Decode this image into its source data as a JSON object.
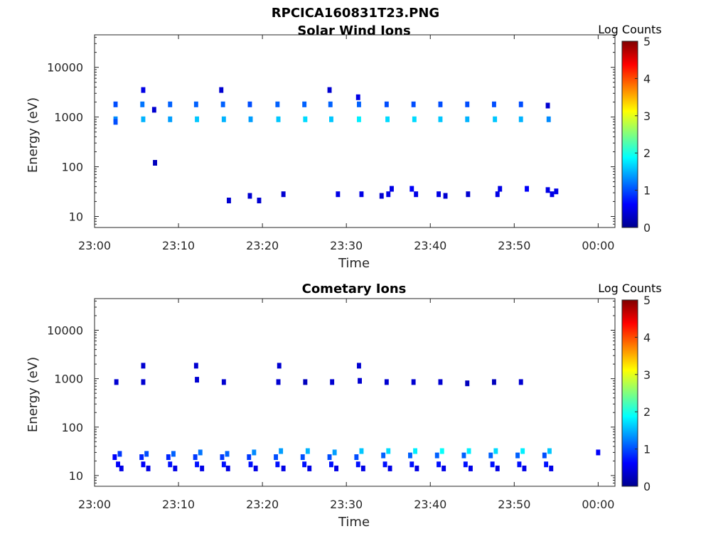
{
  "figure": {
    "title": "RPCICA160831T23.PNG"
  },
  "chart_data": [
    {
      "type": "heatmap",
      "title": "Solar Wind Ions",
      "xlabel": "Time",
      "ylabel": "Energy (eV)",
      "x_range": [
        "23:00",
        "00:02"
      ],
      "xticks": [
        "23:00",
        "23:10",
        "23:20",
        "23:30",
        "23:40",
        "23:50",
        "00:00"
      ],
      "y_scale": "log",
      "ylim": [
        6,
        45000
      ],
      "yticks": [
        10,
        100,
        1000,
        10000
      ],
      "yticklabels": [
        "10",
        "100",
        "1000",
        "10000"
      ],
      "colorbar": {
        "label": "Log Counts",
        "range": [
          0,
          5
        ],
        "ticks": [
          "0",
          "1",
          "2",
          "3",
          "4",
          "5"
        ],
        "colormap": "jet"
      },
      "grid": false,
      "cells": [
        [
          2.5,
          1800,
          1.0
        ],
        [
          2.5,
          900,
          1.3
        ],
        [
          2.5,
          800,
          1.0
        ],
        [
          5.7,
          1800,
          1.2
        ],
        [
          5.8,
          900,
          1.5
        ],
        [
          5.8,
          3500,
          0.5
        ],
        [
          7.1,
          1400,
          0.4
        ],
        [
          7.2,
          120,
          0.3
        ],
        [
          9.0,
          1800,
          1.1
        ],
        [
          9.0,
          900,
          1.4
        ],
        [
          12.1,
          1800,
          1.1
        ],
        [
          12.2,
          900,
          1.6
        ],
        [
          15.3,
          1800,
          1.1
        ],
        [
          15.4,
          900,
          1.5
        ],
        [
          15.1,
          3500,
          0.4
        ],
        [
          18.5,
          1800,
          1.0
        ],
        [
          18.6,
          900,
          1.4
        ],
        [
          21.8,
          1800,
          1.1
        ],
        [
          21.9,
          900,
          1.6
        ],
        [
          25.0,
          1800,
          1.1
        ],
        [
          25.1,
          900,
          1.7
        ],
        [
          28.1,
          1800,
          1.1
        ],
        [
          28.2,
          900,
          1.6
        ],
        [
          28.0,
          3500,
          0.4
        ],
        [
          31.5,
          1800,
          1.1
        ],
        [
          31.5,
          900,
          1.8
        ],
        [
          31.4,
          2500,
          0.5
        ],
        [
          34.8,
          1800,
          1.0
        ],
        [
          34.9,
          900,
          1.7
        ],
        [
          38.0,
          1800,
          1.0
        ],
        [
          38.1,
          900,
          1.7
        ],
        [
          41.2,
          1800,
          1.0
        ],
        [
          41.2,
          900,
          1.6
        ],
        [
          44.4,
          1800,
          1.0
        ],
        [
          44.4,
          900,
          1.5
        ],
        [
          47.6,
          1800,
          1.0
        ],
        [
          47.7,
          900,
          1.6
        ],
        [
          50.8,
          1800,
          1.0
        ],
        [
          50.8,
          900,
          1.5
        ],
        [
          54.0,
          1700,
          0.4
        ],
        [
          54.1,
          900,
          1.3
        ],
        [
          16.0,
          21,
          0.4
        ],
        [
          18.5,
          26,
          0.4
        ],
        [
          19.6,
          21,
          0.4
        ],
        [
          22.5,
          28,
          0.4
        ],
        [
          29.0,
          28,
          0.5
        ],
        [
          31.8,
          28,
          0.5
        ],
        [
          34.2,
          26,
          0.4
        ],
        [
          35.0,
          28,
          0.5
        ],
        [
          35.4,
          36,
          0.5
        ],
        [
          37.8,
          36,
          0.6
        ],
        [
          38.3,
          28,
          0.5
        ],
        [
          41.0,
          28,
          0.5
        ],
        [
          41.8,
          26,
          0.4
        ],
        [
          44.5,
          28,
          0.4
        ],
        [
          48.0,
          28,
          0.5
        ],
        [
          48.3,
          36,
          0.5
        ],
        [
          51.5,
          36,
          0.6
        ],
        [
          54.0,
          34,
          0.5
        ],
        [
          54.5,
          28,
          0.5
        ],
        [
          55.0,
          32,
          0.5
        ]
      ]
    },
    {
      "type": "heatmap",
      "title": "Cometary Ions",
      "xlabel": "Time",
      "ylabel": "Energy (eV)",
      "x_range": [
        "23:00",
        "00:02"
      ],
      "xticks": [
        "23:00",
        "23:10",
        "23:20",
        "23:30",
        "23:40",
        "23:50",
        "00:00"
      ],
      "y_scale": "log",
      "ylim": [
        6,
        45000
      ],
      "yticks": [
        10,
        100,
        1000,
        10000
      ],
      "yticklabels": [
        "10",
        "100",
        "1000",
        "10000"
      ],
      "colorbar": {
        "label": "Log Counts",
        "range": [
          0,
          5
        ],
        "ticks": [
          "0",
          "1",
          "2",
          "3",
          "4",
          "5"
        ],
        "colormap": "jet"
      },
      "grid": false,
      "cells": [
        [
          2.6,
          850,
          0.4
        ],
        [
          5.8,
          1850,
          0.4
        ],
        [
          5.8,
          850,
          0.4
        ],
        [
          12.1,
          1850,
          0.4
        ],
        [
          12.2,
          950,
          0.4
        ],
        [
          15.4,
          850,
          0.4
        ],
        [
          22.0,
          1850,
          0.4
        ],
        [
          21.9,
          850,
          0.4
        ],
        [
          25.1,
          850,
          0.3
        ],
        [
          28.3,
          850,
          0.4
        ],
        [
          31.5,
          1850,
          0.4
        ],
        [
          31.6,
          900,
          0.4
        ],
        [
          34.8,
          850,
          0.4
        ],
        [
          38.0,
          850,
          0.4
        ],
        [
          41.2,
          850,
          0.4
        ],
        [
          44.4,
          800,
          0.3
        ],
        [
          47.6,
          850,
          0.3
        ],
        [
          50.8,
          850,
          0.4
        ],
        [
          2.4,
          24,
          0.6
        ],
        [
          3.0,
          28,
          0.9
        ],
        [
          2.8,
          17,
          0.6
        ],
        [
          3.2,
          14,
          0.5
        ],
        [
          5.6,
          24,
          0.8
        ],
        [
          6.2,
          28,
          1.0
        ],
        [
          5.8,
          17,
          0.6
        ],
        [
          6.4,
          14,
          0.5
        ],
        [
          8.8,
          24,
          0.8
        ],
        [
          9.4,
          28,
          1.1
        ],
        [
          9.0,
          17,
          0.7
        ],
        [
          9.6,
          14,
          0.5
        ],
        [
          12.0,
          24,
          0.9
        ],
        [
          12.6,
          30,
          1.2
        ],
        [
          12.2,
          17,
          0.7
        ],
        [
          12.8,
          14,
          0.5
        ],
        [
          15.2,
          24,
          0.9
        ],
        [
          15.8,
          28,
          1.1
        ],
        [
          15.4,
          17,
          0.7
        ],
        [
          15.9,
          14,
          0.5
        ],
        [
          18.4,
          24,
          0.9
        ],
        [
          19.0,
          30,
          1.3
        ],
        [
          18.6,
          17,
          0.7
        ],
        [
          19.2,
          14,
          0.5
        ],
        [
          21.6,
          24,
          1.0
        ],
        [
          22.2,
          32,
          1.4
        ],
        [
          21.8,
          17,
          0.7
        ],
        [
          22.5,
          14,
          0.5
        ],
        [
          24.8,
          24,
          1.0
        ],
        [
          25.4,
          32,
          1.5
        ],
        [
          25.0,
          17,
          0.7
        ],
        [
          25.6,
          14,
          0.5
        ],
        [
          28.0,
          24,
          1.0
        ],
        [
          28.6,
          30,
          1.4
        ],
        [
          28.2,
          17,
          0.7
        ],
        [
          28.8,
          14,
          0.5
        ],
        [
          31.2,
          24,
          1.0
        ],
        [
          31.8,
          32,
          1.6
        ],
        [
          31.4,
          17,
          0.7
        ],
        [
          32.0,
          14,
          0.5
        ],
        [
          34.4,
          26,
          1.1
        ],
        [
          35.0,
          32,
          1.7
        ],
        [
          34.6,
          17,
          0.7
        ],
        [
          35.2,
          14,
          0.5
        ],
        [
          37.6,
          26,
          1.1
        ],
        [
          38.2,
          32,
          1.8
        ],
        [
          37.8,
          17,
          0.7
        ],
        [
          38.4,
          14,
          0.5
        ],
        [
          40.8,
          26,
          1.1
        ],
        [
          41.4,
          32,
          1.9
        ],
        [
          41.0,
          17,
          0.7
        ],
        [
          41.6,
          14,
          0.5
        ],
        [
          44.0,
          26,
          1.1
        ],
        [
          44.6,
          32,
          1.8
        ],
        [
          44.2,
          17,
          0.7
        ],
        [
          44.8,
          14,
          0.5
        ],
        [
          47.2,
          26,
          1.1
        ],
        [
          47.8,
          32,
          1.7
        ],
        [
          47.4,
          17,
          0.7
        ],
        [
          48.0,
          14,
          0.5
        ],
        [
          50.4,
          26,
          1.1
        ],
        [
          51.0,
          32,
          1.8
        ],
        [
          50.6,
          17,
          0.7
        ],
        [
          51.2,
          14,
          0.5
        ],
        [
          53.6,
          26,
          1.0
        ],
        [
          54.2,
          32,
          1.6
        ],
        [
          53.8,
          17,
          0.7
        ],
        [
          54.4,
          14,
          0.5
        ],
        [
          60.0,
          30,
          0.6
        ]
      ]
    }
  ]
}
